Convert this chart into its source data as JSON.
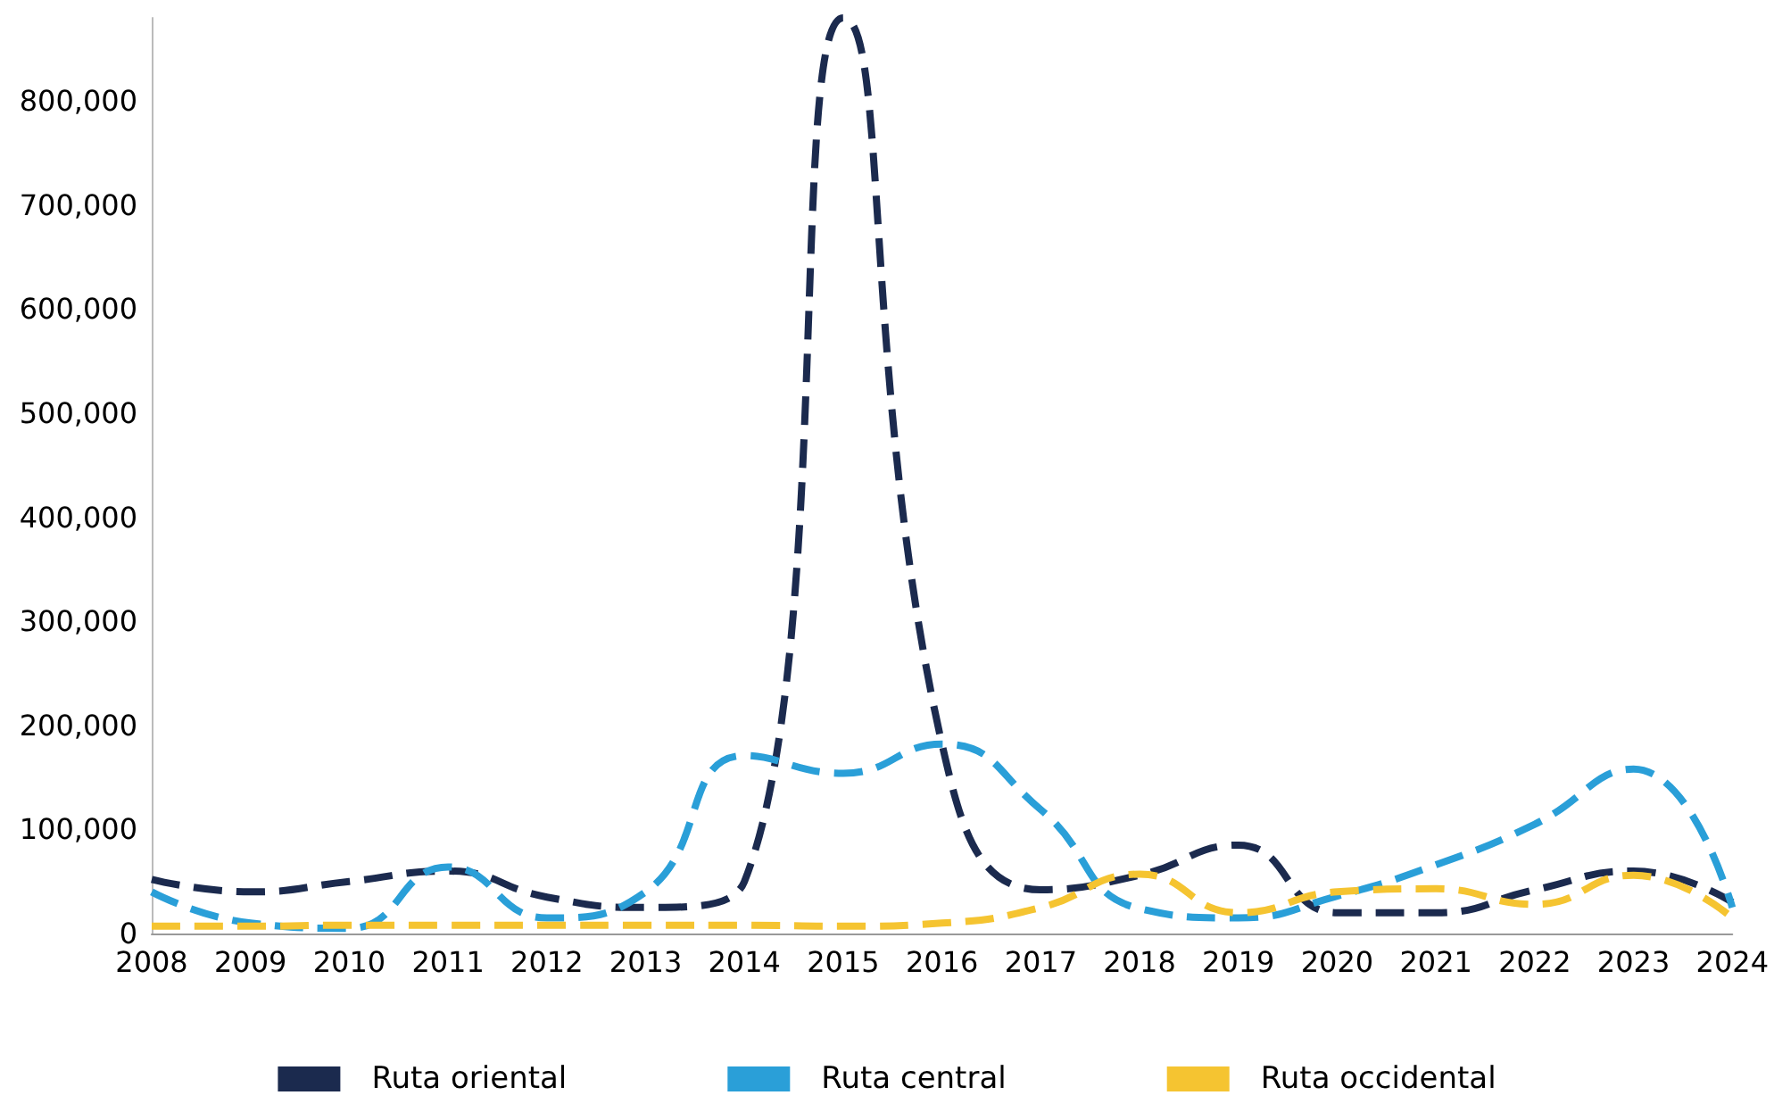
{
  "chart_data": {
    "type": "line",
    "categories": [
      "2008",
      "2009",
      "2010",
      "2011",
      "2012",
      "2013",
      "2014",
      "2015",
      "2016",
      "2017",
      "2018",
      "2019",
      "2020",
      "2021",
      "2022",
      "2023",
      "2024"
    ],
    "series": [
      {
        "name": "Ruta oriental",
        "color": "#1b2a4e",
        "values": [
          52000,
          40000,
          50000,
          60000,
          35000,
          25000,
          50000,
          880000,
          182000,
          42000,
          56000,
          85000,
          20000,
          20000,
          42000,
          60000,
          30000
        ]
      },
      {
        "name": "Ruta central",
        "color": "#2a9fd8",
        "values": [
          40000,
          10000,
          5000,
          64000,
          15000,
          40000,
          171000,
          154000,
          182000,
          119000,
          24000,
          15000,
          36000,
          66000,
          105000,
          158000,
          25000
        ]
      },
      {
        "name": "Ruta occidental",
        "color": "#f5c431",
        "values": [
          7000,
          7000,
          8000,
          8000,
          8000,
          8000,
          8000,
          7000,
          10000,
          25000,
          57000,
          20000,
          40000,
          43000,
          28000,
          56000,
          15000
        ]
      }
    ],
    "ylim": [
      0,
      880000
    ],
    "yticks": [
      0,
      {
        "value": 100000,
        "label": "100,000"
      },
      {
        "value": 200000,
        "label": "200,000"
      },
      {
        "value": 300000,
        "label": "300,000"
      },
      {
        "value": 400000,
        "label": "400,000"
      },
      {
        "value": 500000,
        "label": "500,000"
      },
      {
        "value": 600000,
        "label": "600,000"
      },
      {
        "value": 700000,
        "label": "700,000"
      },
      {
        "value": 800000,
        "label": "800,000"
      }
    ],
    "grid": false,
    "legend": "bottom",
    "marker": "none",
    "line_style": "dashed"
  }
}
